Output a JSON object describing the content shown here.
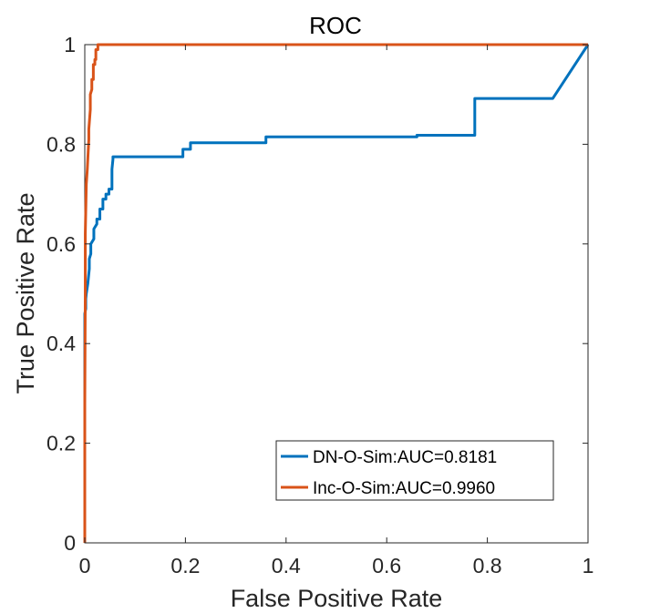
{
  "chart_data": {
    "type": "line",
    "title": "ROC",
    "xlabel": "False Positive Rate",
    "ylabel": "True Positive Rate",
    "xlim": [
      0,
      1
    ],
    "ylim": [
      0,
      1
    ],
    "xticks": [
      "0",
      "0.2",
      "0.4",
      "0.6",
      "0.8",
      "1"
    ],
    "yticks": [
      "0",
      "0.2",
      "0.4",
      "0.6",
      "0.8",
      "1"
    ],
    "grid": false,
    "legend_position": "bottom-right",
    "series": [
      {
        "name": "DN-O-Sim:AUC=0.8181",
        "color": "#0072BD",
        "x": [
          0,
          0,
          0.002,
          0.002,
          0.003,
          0.006,
          0.007,
          0.009,
          0.009,
          0.012,
          0.012,
          0.018,
          0.018,
          0.024,
          0.024,
          0.03,
          0.03,
          0.036,
          0.036,
          0.042,
          0.042,
          0.048,
          0.048,
          0.054,
          0.054,
          0.056,
          0.056,
          0.195,
          0.195,
          0.21,
          0.21,
          0.36,
          0.36,
          0.66,
          0.66,
          0.775,
          0.775,
          0.93,
          1.0
        ],
        "y": [
          0,
          0.46,
          0.47,
          0.49,
          0.5,
          0.52,
          0.53,
          0.55,
          0.57,
          0.58,
          0.6,
          0.61,
          0.63,
          0.64,
          0.65,
          0.65,
          0.67,
          0.67,
          0.69,
          0.69,
          0.7,
          0.7,
          0.71,
          0.71,
          0.75,
          0.77,
          0.775,
          0.775,
          0.79,
          0.79,
          0.803,
          0.803,
          0.815,
          0.815,
          0.818,
          0.818,
          0.892,
          0.892,
          1.0
        ]
      },
      {
        "name": "Inc-O-Sim:AUC=0.9960",
        "color": "#D95319",
        "x": [
          0,
          0,
          0.001,
          0.001,
          0.003,
          0.005,
          0.006,
          0.008,
          0.008,
          0.011,
          0.011,
          0.014,
          0.014,
          0.017,
          0.017,
          0.02,
          0.02,
          0.022,
          0.022,
          0.026,
          0.026,
          1.0
        ],
        "y": [
          0,
          0.28,
          0.5,
          0.62,
          0.72,
          0.75,
          0.77,
          0.81,
          0.83,
          0.87,
          0.9,
          0.91,
          0.93,
          0.93,
          0.96,
          0.96,
          0.97,
          0.97,
          0.99,
          0.99,
          1.0,
          1.0
        ]
      }
    ]
  }
}
